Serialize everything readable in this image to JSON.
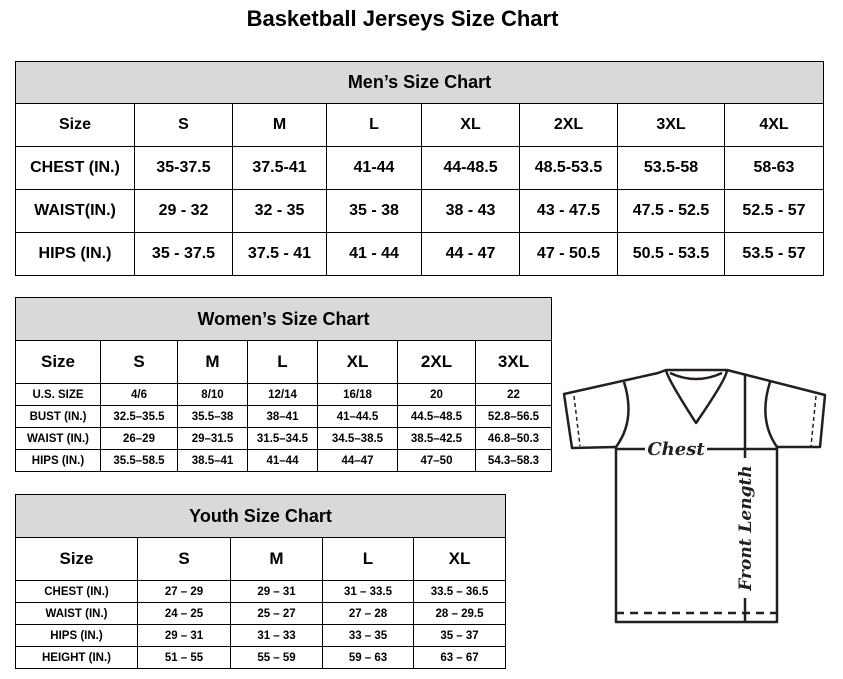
{
  "title": "Basketball Jerseys Size Chart",
  "men": {
    "title": "Men’s Size Chart",
    "header": [
      "Size",
      "S",
      "M",
      "L",
      "XL",
      "2XL",
      "3XL",
      "4XL"
    ],
    "rows": [
      [
        "CHEST (IN.)",
        "35-37.5",
        "37.5-41",
        "41-44",
        "44-48.5",
        "48.5-53.5",
        "53.5-58",
        "58-63"
      ],
      [
        "WAIST(IN.)",
        "29 - 32",
        "32 - 35",
        "35 - 38",
        "38 - 43",
        "43 - 47.5",
        "47.5 - 52.5",
        "52.5 - 57"
      ],
      [
        "HIPS (IN.)",
        "35 - 37.5",
        "37.5 - 41",
        "41 - 44",
        "44 - 47",
        "47 - 50.5",
        "50.5 - 53.5",
        "53.5 - 57"
      ]
    ]
  },
  "women": {
    "title": "Women’s Size Chart",
    "header": [
      "Size",
      "S",
      "M",
      "L",
      "XL",
      "2XL",
      "3XL"
    ],
    "rows": [
      [
        "U.S.  SIZE",
        "4/6",
        "8/10",
        "12/14",
        "16/18",
        "20",
        "22"
      ],
      [
        "BUST  (IN.)",
        "32.5–35.5",
        "35.5–38",
        "38–41",
        "41–44.5",
        "44.5–48.5",
        "52.8–56.5"
      ],
      [
        "WAIST  (IN.)",
        "26–29",
        "29–31.5",
        "31.5–34.5",
        "34.5–38.5",
        "38.5–42.5",
        "46.8–50.3"
      ],
      [
        "HIPS  (IN.)",
        "35.5–58.5",
        "38.5–41",
        "41–44",
        "44–47",
        "47–50",
        "54.3–58.3"
      ]
    ]
  },
  "youth": {
    "title": "Youth Size Chart",
    "header": [
      "Size",
      "S",
      "M",
      "L",
      "XL"
    ],
    "rows": [
      [
        "CHEST  (IN.)",
        "27  –  29",
        "29  –  31",
        "31  –  33.5",
        "33.5  –  36.5"
      ],
      [
        "WAIST  (IN.)",
        "24  –  25",
        "25  –  27",
        "27  –  28",
        "28  –  29.5"
      ],
      [
        "HIPS  (IN.)",
        "29  –  31",
        "31  –  33",
        "33  –  35",
        "35  –  37"
      ],
      [
        "HEIGHT  (IN.)",
        "51  –  55",
        "55  –  59",
        "59  –  63",
        "63  –  67"
      ]
    ]
  },
  "diagram": {
    "chest_label": "Chest",
    "length_label": "Front Length"
  },
  "colors": {
    "header_bg": "#d9d9d9",
    "line": "#231f20"
  }
}
